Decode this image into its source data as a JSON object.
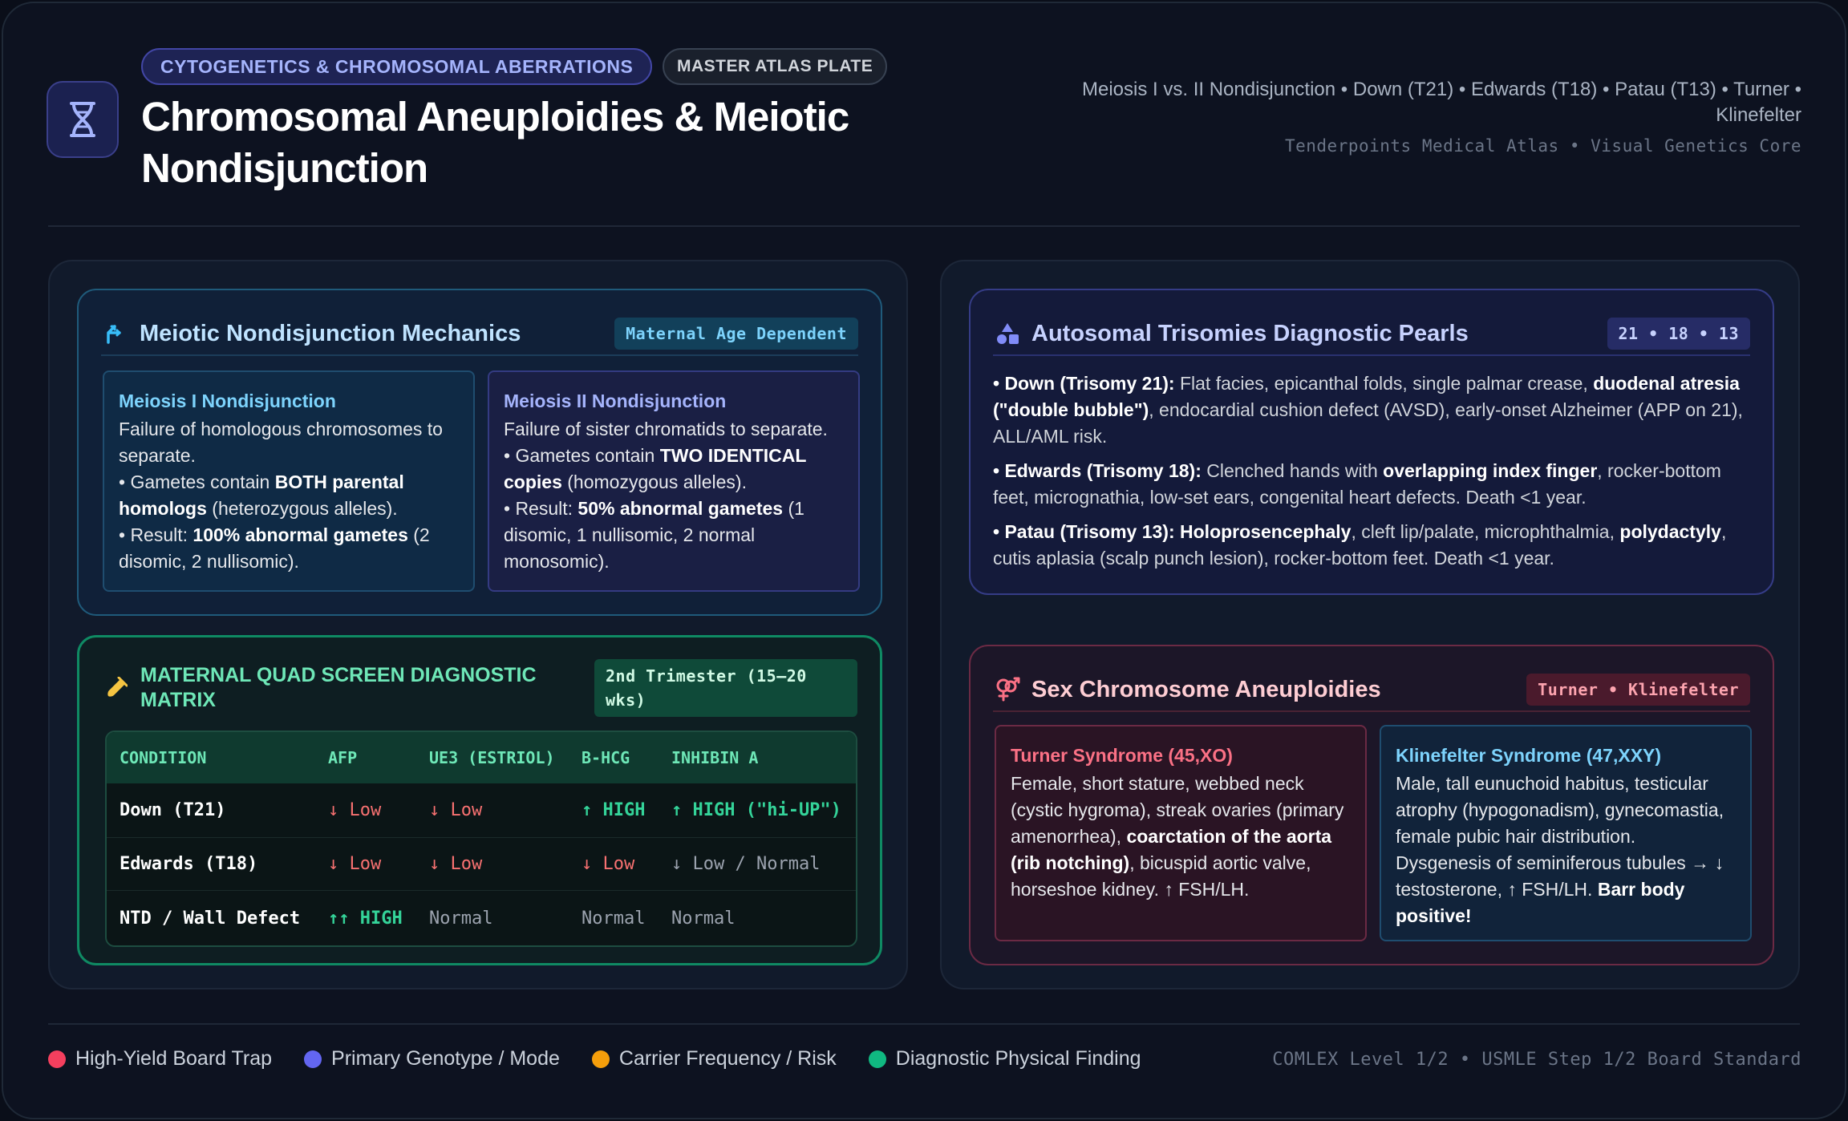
{
  "header": {
    "category_pill": "CYTOGENETICS & CHROMOSOMAL ABERRATIONS",
    "plate_pill": "MASTER ATLAS PLATE",
    "title": "Chromosomal Aneuploidies & Meiotic Nondisjunction",
    "topics": "Meiosis I vs. II Nondisjunction • Down (T21) • Edwards (T18) • Patau (T13) • Turner • Klinefelter",
    "credit": "Tenderpoints Medical Atlas • Visual Genetics Core"
  },
  "meiosis_card": {
    "title": "Meiotic Nondisjunction Mechanics",
    "tag": "Maternal Age Dependent",
    "m1": {
      "heading": "Meiosis I Nondisjunction",
      "line1": "Failure of homologous chromosomes to separate.",
      "b1_pre": "• Gametes contain ",
      "b1_bold": "BOTH parental homologs",
      "b1_post": " (heterozygous alleles).",
      "b2_pre": "• Result: ",
      "b2_bold": "100% abnormal gametes",
      "b2_post": " (2 disomic, 2 nullisomic)."
    },
    "m2": {
      "heading": "Meiosis II Nondisjunction",
      "line1": "Failure of sister chromatids to separate.",
      "b1_pre": "• Gametes contain ",
      "b1_bold": "TWO IDENTICAL copies",
      "b1_post": " (homozygous alleles).",
      "b2_pre": "• Result: ",
      "b2_bold": "50% abnormal gametes",
      "b2_post": " (1 disomic, 1 nullisomic, 2 normal monosomic)."
    }
  },
  "quad_card": {
    "title": "MATERNAL QUAD SCREEN DIAGNOSTIC MATRIX",
    "tag": "2nd Trimester (15–20 wks)",
    "columns": [
      "CONDITION",
      "AFP",
      "UE3 (ESTRIOL)",
      "Β-HCG",
      "INHIBIN A"
    ],
    "rows": [
      [
        "Down (T21)",
        "↓ Low",
        "↓ Low",
        "↑ HIGH",
        "↑ HIGH (\"hi-UP\")"
      ],
      [
        "Edwards (T18)",
        "↓ Low",
        "↓ Low",
        "↓ Low",
        "↓ Low / Normal"
      ],
      [
        "NTD / Wall Defect",
        "↑↑ HIGH",
        "Normal",
        "Normal",
        "Normal"
      ]
    ]
  },
  "trisomy_card": {
    "title": "Autosomal Trisomies Diagnostic Pearls",
    "tag": "21 • 18 • 13",
    "down": {
      "label": "• Down (Trisomy 21):",
      "t1": " Flat facies, epicanthal folds, single palmar crease, ",
      "b1": "duodenal atresia (\"double bubble\")",
      "t2": ", endocardial cushion defect (AVSD), early-onset Alzheimer (APP on 21), ALL/AML risk."
    },
    "edwards": {
      "label": "• Edwards (Trisomy 18):",
      "t1": " Clenched hands with ",
      "b1": "overlapping index finger",
      "t2": ", rocker-bottom feet, micrognathia, low-set ears, congenital heart defects. Death <1 year."
    },
    "patau": {
      "label": "• Patau (Trisomy 13):",
      "t0": " ",
      "b1": "Holoprosencephaly",
      "t1": ", cleft lip/palate, microphthalmia, ",
      "b2": "polydactyly",
      "t2": ", cutis aplasia (scalp punch lesion), rocker-bottom feet. Death <1 year."
    }
  },
  "sex_card": {
    "title": "Sex Chromosome Aneuploidies",
    "tag": "Turner • Klinefelter",
    "turner": {
      "heading": "Turner Syndrome (45,XO)",
      "t1": "Female, short stature, webbed neck (cystic hygroma), streak ovaries (primary amenorrhea), ",
      "b1": "coarctation of the aorta (rib notching)",
      "t2": ", bicuspid aortic valve, horseshoe kidney. ↑ FSH/LH."
    },
    "klinefelter": {
      "heading": "Klinefelter Syndrome (47,XXY)",
      "t1": "Male, tall eunuchoid habitus, testicular atrophy (hypogonadism), gynecomastia, female pubic hair distribution. Dysgenesis of seminiferous tubules → ↓ testosterone, ↑ FSH/LH. ",
      "b1": "Barr body positive!"
    }
  },
  "legend": [
    {
      "label": "High-Yield Board Trap",
      "color": "#f43f5e"
    },
    {
      "label": "Primary Genotype / Mode",
      "color": "#6366f1"
    },
    {
      "label": "Carrier Frequency / Risk",
      "color": "#f59e0b"
    },
    {
      "label": "Diagnostic Physical Finding",
      "color": "#10b981"
    }
  ],
  "footer_note": "COMLEX Level 1/2 • USMLE Step 1/2 Board Standard"
}
